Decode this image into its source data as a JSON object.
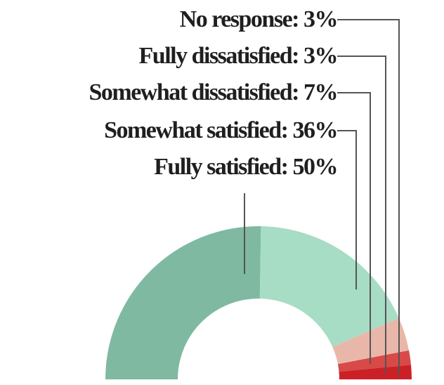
{
  "chart_data": {
    "type": "pie",
    "subtype": "semicircle-donut",
    "slices": [
      {
        "label": "Fully satisfied",
        "value": 50,
        "display": "Fully satisfied: 50%",
        "color": "#7fb9a1"
      },
      {
        "label": "Somewhat satisfied",
        "value": 36,
        "display": "Somewhat satisfied: 36%",
        "color": "#a7dcc5"
      },
      {
        "label": "Somewhat dissatisfied",
        "value": 7,
        "display": "Somewhat dissatisfied: 7%",
        "color": "#e9b7aa"
      },
      {
        "label": "Fully dissatisfied",
        "value": 3,
        "display": "Fully dissatisfied: 3%",
        "color": "#d84a48"
      },
      {
        "label": "No response",
        "value": 3,
        "display": "No response: 3%",
        "color": "#cc2027"
      }
    ],
    "legend": "none",
    "grid": false
  }
}
